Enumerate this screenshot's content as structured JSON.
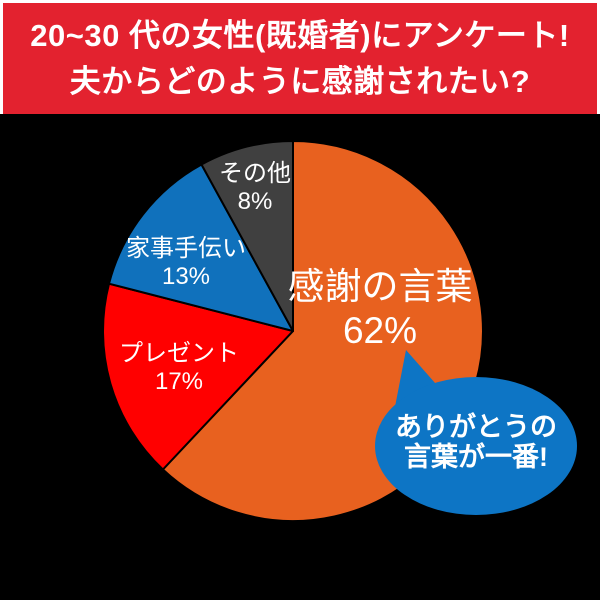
{
  "header": {
    "line1": "20~30 代の女性(既婚者)にアンケート!",
    "line2": "夫からどのように感謝されたい?",
    "bg_color": "#E3222F",
    "text_color": "#FFFFFF"
  },
  "chart_data": {
    "type": "pie",
    "title": "夫からどのように感謝されたい?(20~30代既婚女性アンケート)",
    "start_angle_deg": 0,
    "direction": "clockwise",
    "background": "#000000",
    "slice_border_color": "#000000",
    "slices": [
      {
        "label": "感謝の言葉",
        "value": 62,
        "pct_label": "62%",
        "color": "#E8611F"
      },
      {
        "label": "プレゼント",
        "value": 17,
        "pct_label": "17%",
        "color": "#FF0000"
      },
      {
        "label": "家事手伝い",
        "value": 13,
        "pct_label": "13%",
        "color": "#1071BC"
      },
      {
        "label": "その他",
        "value": 8,
        "pct_label": "8%",
        "color": "#404040"
      }
    ]
  },
  "callout": {
    "line1": "ありがとうの",
    "line2": "言葉が一番!",
    "bg_color": "#0D75C5",
    "text_color": "#FFFFFF"
  }
}
